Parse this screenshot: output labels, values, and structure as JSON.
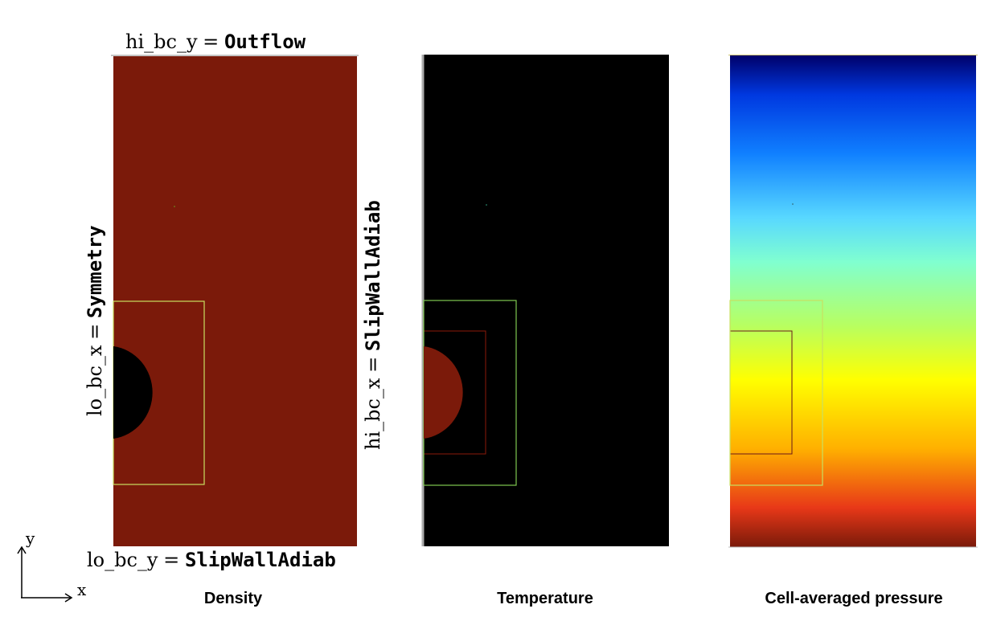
{
  "panels": [
    {
      "caption": "Density",
      "background": "#7b1a0a",
      "circle_color": "#000000",
      "outer_box_color": "#c8e060",
      "inner_box_color": "#7b1a0a"
    },
    {
      "caption": "Temperature",
      "background": "#000000",
      "circle_color": "#7b1a0a",
      "outer_box_color": "#7ec850",
      "inner_box_color": "#8b1a0a"
    },
    {
      "caption": "Cell-averaged pressure",
      "gradient_stops": [
        "#00006a",
        "#0038e0",
        "#1080ff",
        "#58d8ff",
        "#80ffd0",
        "#b8ff60",
        "#ffff00",
        "#ffb000",
        "#e83818",
        "#7a1a0a"
      ],
      "outer_box_color": "#c8e060",
      "inner_box_color": "#6a1a1a"
    }
  ],
  "boundary_labels": {
    "hi_bc_y": {
      "name": "hi_bc_y",
      "eq": "=",
      "value": "Outflow"
    },
    "lo_bc_x": {
      "name": "lo_bc_x",
      "eq": "=",
      "value": "Symmetry"
    },
    "hi_bc_x": {
      "name": "hi_bc_x",
      "eq": "=",
      "value": "SlipWallAdiab"
    },
    "lo_bc_y": {
      "name": "lo_bc_y",
      "eq": "=",
      "value": "SlipWallAdiab"
    }
  },
  "axes": {
    "x_label": "x",
    "y_label": "y"
  }
}
